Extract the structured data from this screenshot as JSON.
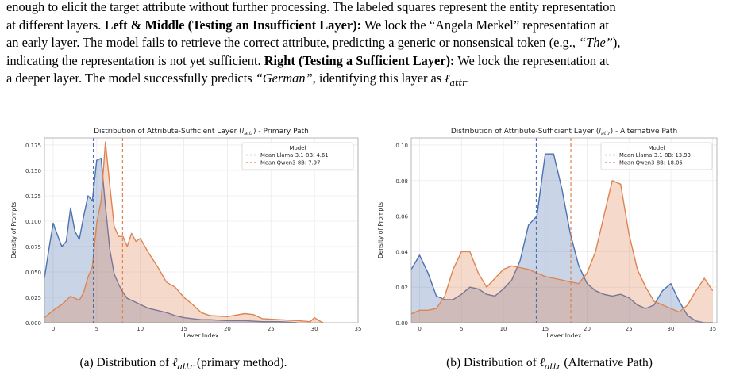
{
  "paragraph": {
    "line1": "enough to elicit the target attribute without further processing. The labeled squares represent the entity representation",
    "line2": "at different layers. ",
    "bold1": "Left & Middle (Testing an Insufficient Layer):",
    "line2b": " We lock the “Angela Merkel” representation at",
    "line3": "an early layer. The model fails to retrieve the correct attribute, predicting a generic or nonsensical token (e.g., ",
    "ital1": "“The”",
    "line3b": "),",
    "line4a": "indicating the representation is not yet sufficient. ",
    "bold2": "Right (Testing a Sufficient Layer):",
    "line4b": " We lock the representation at",
    "line5a": "a deeper layer. The model successfully predicts ",
    "ital2": "“German”",
    "line5b": ", identifying this layer as ",
    "math1": "ℓ",
    "math1sub": "attr",
    "line5c": "."
  },
  "colors": {
    "llama": "#4c72b0",
    "qwen": "#dd8452",
    "grid": "#ebebeb",
    "axis": "#444444"
  },
  "chart_data": [
    {
      "type": "area",
      "title": "Distribution of Attribute-Sufficient Layer (l_attr) - Primary Path",
      "title_parts": {
        "pre": "Distribution of Attribute-Sufficient Layer (",
        "l": "l",
        "sub": "attr",
        "post": ") - Primary Path"
      },
      "xlabel": "Layer Index",
      "ylabel": "Density of Prompts",
      "xlim": [
        -1,
        35
      ],
      "ylim": [
        0,
        0.182
      ],
      "xticks": [
        0,
        5,
        10,
        15,
        20,
        25,
        30,
        35
      ],
      "yticks": [
        0.0,
        0.025,
        0.05,
        0.075,
        0.1,
        0.125,
        0.15,
        0.175
      ],
      "ytick_labels": [
        "0.000",
        "0.025",
        "0.050",
        "0.075",
        "0.100",
        "0.125",
        "0.150",
        "0.175"
      ],
      "grid": true,
      "legend": {
        "title": "Model",
        "placement": "top-right",
        "entries": [
          "Mean Llama-3.1-8B: 4.61",
          "Mean Qwen3-8B: 7.97"
        ]
      },
      "means": [
        4.61,
        7.97
      ],
      "series": [
        {
          "name": "Llama-3.1-8B",
          "x": [
            -1.0,
            -0.5,
            0.0,
            0.5,
            1.0,
            1.5,
            2.0,
            2.5,
            3.0,
            3.5,
            4.0,
            4.5,
            5.0,
            5.5,
            6.0,
            6.5,
            7.0,
            7.5,
            8.0,
            8.5,
            9.0,
            10.0,
            11.0,
            12.0,
            13.0,
            14.0,
            15.0,
            16.0,
            17.0,
            18.0,
            20.0,
            22.0,
            24.0,
            26.0,
            28.0
          ],
          "values": [
            0.044,
            0.072,
            0.098,
            0.086,
            0.075,
            0.08,
            0.113,
            0.09,
            0.082,
            0.105,
            0.125,
            0.12,
            0.16,
            0.162,
            0.115,
            0.072,
            0.048,
            0.038,
            0.03,
            0.024,
            0.022,
            0.018,
            0.014,
            0.012,
            0.01,
            0.007,
            0.005,
            0.004,
            0.003,
            0.003,
            0.002,
            0.002,
            0.001,
            0.001,
            0.0
          ]
        },
        {
          "name": "Qwen3-8B",
          "x": [
            -1.0,
            0.0,
            1.0,
            2.0,
            3.0,
            3.5,
            4.0,
            4.5,
            5.0,
            5.5,
            6.0,
            6.5,
            7.0,
            7.5,
            8.0,
            8.5,
            9.0,
            9.5,
            10.0,
            11.0,
            12.0,
            13.0,
            14.0,
            15.0,
            16.0,
            17.0,
            18.0,
            20.0,
            22.0,
            23.0,
            24.0,
            26.0,
            28.0,
            29.5,
            30.0,
            30.5,
            31.0
          ],
          "values": [
            0.005,
            0.012,
            0.018,
            0.026,
            0.022,
            0.03,
            0.045,
            0.055,
            0.098,
            0.12,
            0.178,
            0.135,
            0.095,
            0.085,
            0.085,
            0.075,
            0.088,
            0.08,
            0.083,
            0.068,
            0.055,
            0.04,
            0.035,
            0.025,
            0.018,
            0.01,
            0.007,
            0.006,
            0.009,
            0.008,
            0.004,
            0.003,
            0.002,
            0.001,
            0.005,
            0.002,
            0.0
          ]
        }
      ]
    },
    {
      "type": "area",
      "title": "Distribution of Attribute-Sufficient Layer (l_attr) - Alternative Path",
      "title_parts": {
        "pre": "Distribution of Attribute-Sufficient Layer (",
        "l": "l",
        "sub": "attr",
        "post": ") - Alternative Path"
      },
      "xlabel": "Layer Index",
      "ylabel": "Density of Prompts",
      "xlim": [
        -1,
        35.5
      ],
      "ylim": [
        0,
        0.104
      ],
      "xticks": [
        0,
        5,
        10,
        15,
        20,
        25,
        30,
        35
      ],
      "yticks": [
        0.0,
        0.02,
        0.04,
        0.06,
        0.08,
        0.1
      ],
      "ytick_labels": [
        "0.00",
        "0.02",
        "0.04",
        "0.06",
        "0.08",
        "0.10"
      ],
      "grid": true,
      "legend": {
        "title": "Model",
        "placement": "top-right",
        "entries": [
          "Mean Llama-3.1-8B: 13.93",
          "Mean Qwen3-8B: 18.06"
        ]
      },
      "means": [
        13.93,
        18.06
      ],
      "series": [
        {
          "name": "Llama-3.1-8B",
          "x": [
            -1.0,
            0.0,
            1.0,
            2.0,
            3.0,
            4.0,
            5.0,
            6.0,
            7.0,
            8.0,
            9.0,
            10.0,
            11.0,
            12.0,
            13.0,
            14.0,
            15.0,
            16.0,
            17.0,
            18.0,
            19.0,
            20.0,
            21.0,
            22.0,
            23.0,
            24.0,
            25.0,
            26.0,
            27.0,
            28.0,
            29.0,
            30.0,
            31.0,
            32.0,
            33.0,
            34.0,
            35.0
          ],
          "values": [
            0.03,
            0.038,
            0.028,
            0.015,
            0.013,
            0.013,
            0.016,
            0.02,
            0.019,
            0.016,
            0.015,
            0.019,
            0.024,
            0.035,
            0.055,
            0.06,
            0.095,
            0.095,
            0.075,
            0.05,
            0.032,
            0.022,
            0.018,
            0.016,
            0.015,
            0.016,
            0.014,
            0.01,
            0.008,
            0.01,
            0.018,
            0.022,
            0.012,
            0.004,
            0.001,
            0.0,
            0.0
          ]
        },
        {
          "name": "Qwen3-8B",
          "x": [
            -1.0,
            0.0,
            1.0,
            2.0,
            3.0,
            4.0,
            5.0,
            6.0,
            7.0,
            8.0,
            9.0,
            10.0,
            11.0,
            12.0,
            13.0,
            14.0,
            15.0,
            16.0,
            17.0,
            18.0,
            19.0,
            20.0,
            21.0,
            22.0,
            23.0,
            24.0,
            25.0,
            26.0,
            27.0,
            28.0,
            29.0,
            30.0,
            31.0,
            32.0,
            33.0,
            34.0,
            35.0
          ],
          "values": [
            0.005,
            0.007,
            0.007,
            0.008,
            0.015,
            0.03,
            0.04,
            0.04,
            0.028,
            0.02,
            0.025,
            0.03,
            0.032,
            0.031,
            0.03,
            0.028,
            0.026,
            0.025,
            0.024,
            0.023,
            0.022,
            0.028,
            0.04,
            0.06,
            0.08,
            0.078,
            0.05,
            0.03,
            0.02,
            0.012,
            0.01,
            0.008,
            0.006,
            0.01,
            0.018,
            0.025,
            0.018
          ]
        }
      ]
    }
  ],
  "captions": [
    {
      "pre": "(a)  Distribution of ",
      "l": "ℓ",
      "sub": "attr",
      "post": " (primary method)."
    },
    {
      "pre": "(b)  Distribution of ",
      "l": "ℓ",
      "sub": "attr",
      "post": " (Alternative Path)"
    }
  ]
}
